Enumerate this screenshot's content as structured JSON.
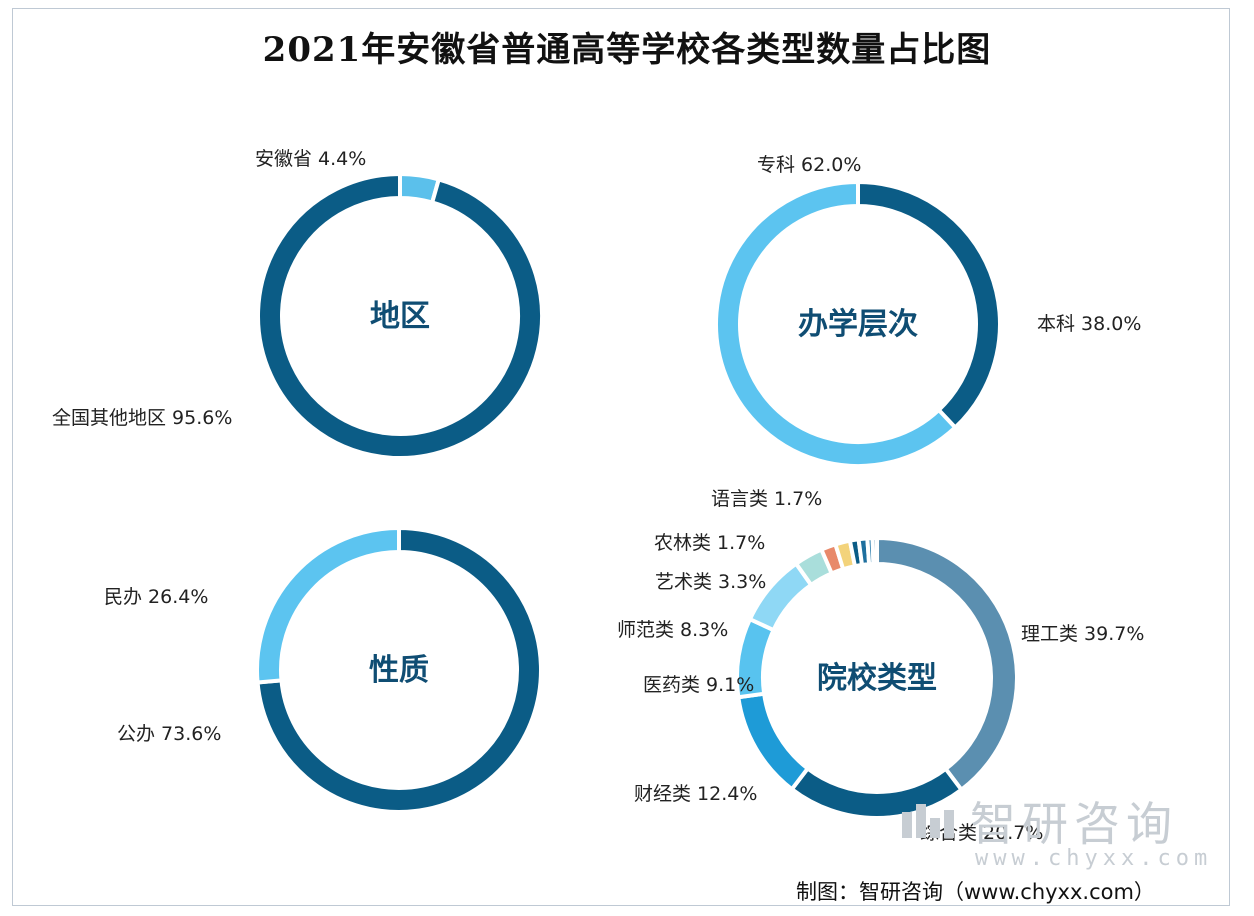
{
  "title": "2021年安徽省普通高等学校各类型数量占比图",
  "credit": "制图：智研咨询（www.chyxx.com）",
  "watermark": {
    "brand": "智研咨询",
    "url": "www.chyxx.com"
  },
  "chart_data": [
    {
      "type": "pie",
      "center_label": "地区",
      "slices": [
        {
          "label": "安徽省",
          "value": 4.4,
          "display": "4.4%",
          "color": "#5bc0eb"
        },
        {
          "label": "全国其他地区",
          "value": 95.6,
          "display": "95.6%",
          "color": "#0b5c86"
        }
      ]
    },
    {
      "type": "pie",
      "center_label": "办学层次",
      "slices": [
        {
          "label": "本科",
          "value": 38.0,
          "display": "38.0%",
          "color": "#0b5c86"
        },
        {
          "label": "专科",
          "value": 62.0,
          "display": "62.0%",
          "color": "#5cc4f0"
        }
      ]
    },
    {
      "type": "pie",
      "center_label": "性质",
      "slices": [
        {
          "label": "公办",
          "value": 73.6,
          "display": "73.6%",
          "color": "#0b5c86"
        },
        {
          "label": "民办",
          "value": 26.4,
          "display": "26.4%",
          "color": "#5cc4f0"
        }
      ]
    },
    {
      "type": "pie",
      "center_label": "院校类型",
      "slices": [
        {
          "label": "理工类",
          "value": 39.7,
          "display": "39.7%",
          "color": "#5b8fb0"
        },
        {
          "label": "综合类",
          "value": 20.7,
          "display": "20.7%",
          "color": "#0b5c86"
        },
        {
          "label": "财经类",
          "value": 12.4,
          "display": "12.4%",
          "color": "#1e9bd7"
        },
        {
          "label": "医药类",
          "value": 9.1,
          "display": "9.1%",
          "color": "#58c3ef"
        },
        {
          "label": "师范类",
          "value": 8.3,
          "display": "8.3%",
          "color": "#8fd8f5"
        },
        {
          "label": "艺术类",
          "value": 3.3,
          "display": "3.3%",
          "color": "#a9dedb"
        },
        {
          "label": "农林类",
          "value": 1.7,
          "display": "1.7%",
          "color": "#e8896a"
        },
        {
          "label": "语言类",
          "value": 1.7,
          "display": "1.7%",
          "color": "#f3d37b"
        },
        {
          "value": 1.0,
          "color": "#0b5c86"
        },
        {
          "value": 1.0,
          "color": "#1e6f9e"
        },
        {
          "value": 0.6,
          "color": "#2f7fae"
        },
        {
          "value": 0.5,
          "color": "#5b8fb0"
        }
      ]
    }
  ]
}
